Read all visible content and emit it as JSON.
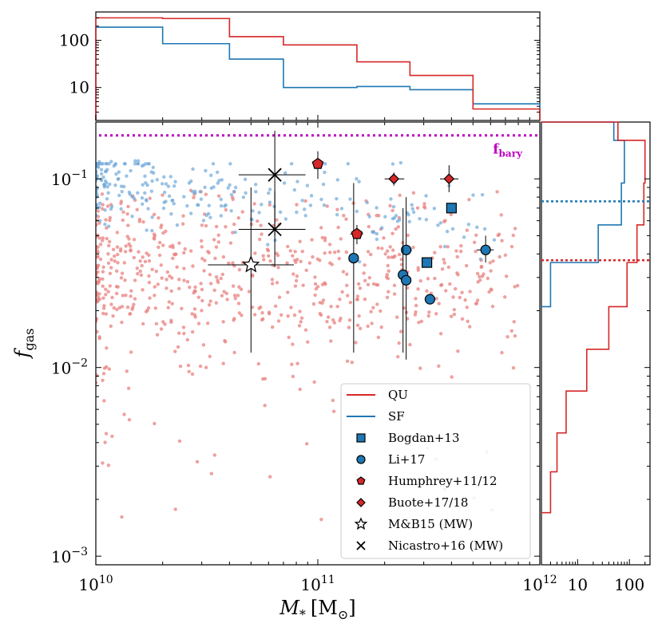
{
  "colors": {
    "qu": "#d62728",
    "sf": "#1f77b4",
    "fbary": "#c000c0",
    "qu_points": "#e8817f",
    "sf_points": "#6fa8d8"
  },
  "labels": {
    "xlabel_main": "M",
    "xlabel_sub": "*",
    "xlabel_unit_open": "[M",
    "xlabel_unit_sub": "⊙",
    "xlabel_unit_close": "]",
    "ylabel_main": "f",
    "ylabel_sub": "gas",
    "fbary_main": "f",
    "fbary_sub": "bary",
    "x_ticks": [
      {
        "base": "10",
        "exp": "10",
        "value": 10000000000.0
      },
      {
        "base": "10",
        "exp": "11",
        "value": 100000000000.0
      },
      {
        "base": "10",
        "exp": "12",
        "value": 1000000000000.0
      }
    ],
    "y_ticks": [
      {
        "base": "10",
        "exp": "−1",
        "value": 0.1
      },
      {
        "base": "10",
        "exp": "−2",
        "value": 0.01
      },
      {
        "base": "10",
        "exp": "−3",
        "value": 0.001
      }
    ],
    "top_y_ticks": [
      "100",
      "10"
    ],
    "right_x_ticks": [
      "10",
      "100"
    ]
  },
  "legend": [
    {
      "label": "QU",
      "kind": "line",
      "color": "#d62728"
    },
    {
      "label": "SF",
      "kind": "line",
      "color": "#1f77b4"
    },
    {
      "label": "Bogdan+13",
      "kind": "square",
      "color": "#1f77b4"
    },
    {
      "label": "Li+17",
      "kind": "circle",
      "color": "#1f77b4"
    },
    {
      "label": "Humphrey+11/12",
      "kind": "pentagon",
      "color": "#d62728"
    },
    {
      "label": "Buote+17/18",
      "kind": "diamond",
      "color": "#d62728"
    },
    {
      "label": "M&B15 (MW)",
      "kind": "star",
      "color": "#ffffff"
    },
    {
      "label": "Nicastro+16 (MW)",
      "kind": "x",
      "color": "#000000"
    }
  ],
  "chart_data": {
    "type": "scatter",
    "title": "",
    "xlabel": "M* [M☉]",
    "ylabel": "f_gas",
    "xscale": "log",
    "yscale": "log",
    "xlim": [
      10000000000.0,
      1000000000000.0
    ],
    "ylim": [
      0.0009,
      0.2
    ],
    "f_bary": 0.17,
    "observations": [
      {
        "set": "Bogdan+13",
        "marker": "square",
        "x": 400000000000.0,
        "y": 0.07
      },
      {
        "set": "Bogdan+13",
        "marker": "square",
        "x": 310000000000.0,
        "y": 0.036
      },
      {
        "set": "Li+17",
        "marker": "circle",
        "x": 145000000000.0,
        "y": 0.038,
        "ylo": 0.012,
        "yhi": 0.095
      },
      {
        "set": "Li+17",
        "marker": "circle",
        "x": 250000000000.0,
        "y": 0.042,
        "ylo": 0.011,
        "yhi": 0.08
      },
      {
        "set": "Li+17",
        "marker": "circle",
        "x": 242000000000.0,
        "y": 0.031,
        "ylo": 0.012,
        "yhi": 0.07
      },
      {
        "set": "Li+17",
        "marker": "circle",
        "x": 250000000000.0,
        "y": 0.029
      },
      {
        "set": "Li+17",
        "marker": "circle",
        "x": 320000000000.0,
        "y": 0.023
      },
      {
        "set": "Li+17",
        "marker": "circle",
        "x": 570000000000.0,
        "y": 0.042,
        "ylo": 0.036,
        "yhi": 0.05,
        "xlo": 520000000000.0,
        "xhi": 620000000000.0
      },
      {
        "set": "Humphrey+11/12",
        "marker": "pentagon",
        "x": 100000000000.0,
        "y": 0.12,
        "ylo": 0.1,
        "yhi": 0.14
      },
      {
        "set": "Humphrey+11/12",
        "marker": "pentagon",
        "x": 150000000000.0,
        "y": 0.051,
        "ylo": 0.045,
        "yhi": 0.057,
        "xlo": 140000000000.0,
        "xhi": 160000000000.0
      },
      {
        "set": "Buote+17/18",
        "marker": "diamond",
        "x": 220000000000.0,
        "y": 0.1,
        "ylo": 0.092,
        "yhi": 0.108,
        "xlo": 200000000000.0,
        "xhi": 245000000000.0
      },
      {
        "set": "Buote+17/18",
        "marker": "diamond",
        "x": 390000000000.0,
        "y": 0.1,
        "ylo": 0.085,
        "yhi": 0.118,
        "xlo": 355000000000.0,
        "xhi": 430000000000.0
      },
      {
        "set": "M&B15 (MW)",
        "marker": "star",
        "x": 50000000000.0,
        "y": 0.035,
        "xlo": 32000000000.0,
        "xhi": 78000000000.0,
        "ylo": 0.012,
        "yhi": 0.09
      },
      {
        "set": "Nicastro+16 (MW)",
        "marker": "x",
        "x": 64000000000.0,
        "y": 0.105,
        "xlo": 44000000000.0,
        "xhi": 88000000000.0,
        "ylo": 0.05,
        "yhi": 0.18
      },
      {
        "set": "Nicastro+16 (MW)",
        "marker": "x",
        "x": 64000000000.0,
        "y": 0.054,
        "xlo": 44000000000.0,
        "xhi": 88000000000.0,
        "ylo": 0.034,
        "yhi": 0.086
      }
    ],
    "top_histogram": {
      "bin_edges": [
        10000000000.0,
        20000000000.0,
        40000000000.0,
        70000000000.0,
        150000000000.0,
        260000000000.0,
        500000000000.0,
        1000000000000.0
      ],
      "QU": [
        300,
        290,
        120,
        80,
        35,
        18,
        3.5
      ],
      "SF": [
        190,
        85,
        40,
        10,
        10.5,
        9,
        4.5
      ],
      "ylim": [
        2,
        400
      ]
    },
    "right_histogram": {
      "bin_edges": [
        0.0017,
        0.0028,
        0.0045,
        0.0075,
        0.0125,
        0.021,
        0.036,
        0.057,
        0.095,
        0.16,
        0.2
      ],
      "QU": [
        3,
        4,
        6,
        15,
        40,
        90,
        140,
        190,
        200,
        60
      ],
      "SF": [
        0,
        0,
        0,
        0,
        0,
        3,
        25,
        70,
        80,
        50
      ],
      "xlim": [
        2,
        250
      ],
      "QU_median_fgas": 0.037,
      "SF_median_fgas": 0.076
    },
    "simulated_points_note": "~700 QU (red, mostly f_gas 0.01–0.08) and ~250 SF (blue, mostly f_gas 0.05–0.13 at M* < 4e10) simulated galaxies"
  }
}
